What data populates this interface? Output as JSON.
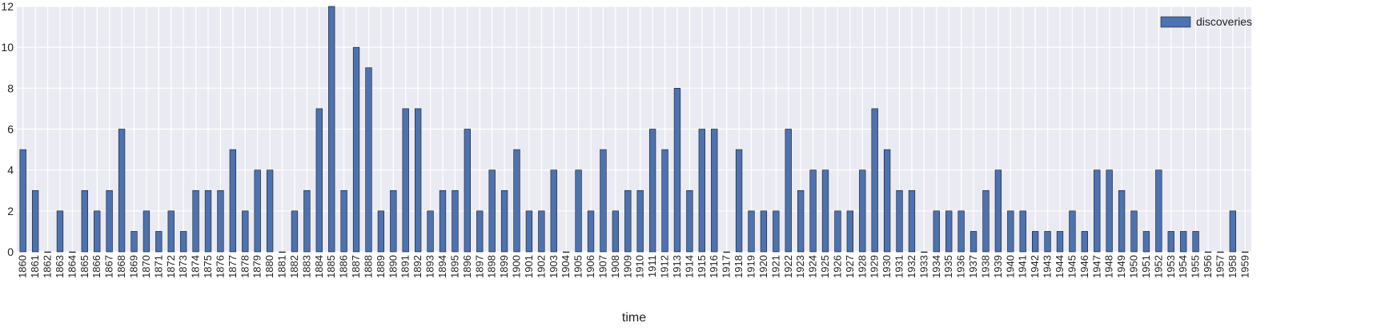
{
  "chart_data": {
    "type": "bar",
    "xlabel": "time",
    "ylabel": "",
    "ylim": [
      0,
      12
    ],
    "yticks": [
      "0",
      "2",
      "4",
      "6",
      "8",
      "10",
      "12"
    ],
    "grid": true,
    "legend_position": "top-right",
    "colors": {
      "bar": "#4c72b0",
      "bar_edge": "#1a1a1a",
      "plot_bg": "#eaeaf2",
      "grid": "#ffffff"
    },
    "categories": [
      "1860",
      "1861",
      "1862",
      "1863",
      "1864",
      "1865",
      "1866",
      "1867",
      "1868",
      "1869",
      "1870",
      "1871",
      "1872",
      "1873",
      "1874",
      "1875",
      "1876",
      "1877",
      "1878",
      "1879",
      "1880",
      "1881",
      "1882",
      "1883",
      "1884",
      "1885",
      "1886",
      "1887",
      "1888",
      "1889",
      "1890",
      "1891",
      "1892",
      "1893",
      "1894",
      "1895",
      "1896",
      "1897",
      "1898",
      "1899",
      "1900",
      "1901",
      "1902",
      "1903",
      "1904",
      "1905",
      "1906",
      "1907",
      "1908",
      "1909",
      "1910",
      "1911",
      "1912",
      "1913",
      "1914",
      "1915",
      "1916",
      "1917",
      "1918",
      "1919",
      "1920",
      "1921",
      "1922",
      "1923",
      "1924",
      "1925",
      "1926",
      "1927",
      "1928",
      "1929",
      "1930",
      "1931",
      "1932",
      "1933",
      "1934",
      "1935",
      "1936",
      "1937",
      "1938",
      "1939",
      "1940",
      "1941",
      "1942",
      "1943",
      "1944",
      "1945",
      "1946",
      "1947",
      "1948",
      "1949",
      "1950",
      "1951",
      "1952",
      "1953",
      "1954",
      "1955",
      "1956",
      "1957",
      "1958",
      "1959"
    ],
    "series": [
      {
        "name": "discoveries",
        "values": [
          5,
          3,
          0,
          2,
          0,
          3,
          2,
          3,
          6,
          1,
          2,
          1,
          2,
          1,
          3,
          3,
          3,
          5,
          2,
          4,
          4,
          0,
          2,
          3,
          7,
          12,
          3,
          10,
          9,
          2,
          3,
          7,
          7,
          2,
          3,
          3,
          6,
          2,
          4,
          3,
          5,
          2,
          2,
          4,
          0,
          4,
          2,
          5,
          2,
          3,
          3,
          6,
          5,
          8,
          3,
          6,
          6,
          0,
          5,
          2,
          2,
          2,
          6,
          3,
          4,
          4,
          2,
          2,
          4,
          7,
          5,
          3,
          3,
          0,
          2,
          2,
          2,
          1,
          3,
          4,
          2,
          2,
          1,
          1,
          1,
          2,
          1,
          4,
          4,
          3,
          2,
          1,
          4,
          1,
          1,
          1,
          0,
          0,
          2,
          0
        ]
      }
    ]
  }
}
